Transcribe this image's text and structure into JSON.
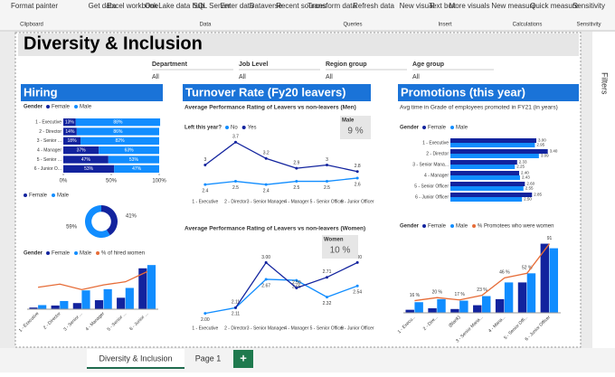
{
  "ribbon": {
    "groups": [
      {
        "name": "Clipboard",
        "items": [
          "Format painter"
        ]
      },
      {
        "name": "Data",
        "items": [
          "Get data",
          "Excel workbook",
          "OneLake data hub",
          "SQL Server",
          "Enter data",
          "Dataverse",
          "Recent sources"
        ]
      },
      {
        "name": "Queries",
        "items": [
          "Transform data",
          "Refresh data"
        ]
      },
      {
        "name": "Insert",
        "items": [
          "New visual",
          "Text box",
          "More visuals"
        ]
      },
      {
        "name": "Calculations",
        "items": [
          "New measure",
          "Quick measure"
        ]
      },
      {
        "name": "Sensitivity",
        "items": [
          "Sensitivity"
        ]
      }
    ]
  },
  "report": {
    "title": "Diversity & Inclusion"
  },
  "filters": [
    {
      "label": "Department",
      "value": "All"
    },
    {
      "label": "Job Level",
      "value": "All"
    },
    {
      "label": "Region group",
      "value": "All"
    },
    {
      "label": "Age group",
      "value": "All"
    }
  ],
  "hiring": {
    "title": "Hiring",
    "bar": {
      "type": "hbar",
      "stacked": true,
      "legend_title": "Gender",
      "categories": [
        "1 - Executive",
        "2 - Director",
        "3 - Senior ...",
        "4 - Manager",
        "5 - Senior ...",
        "6 - Junior O..."
      ],
      "series": [
        {
          "name": "Female",
          "color": "#12239e",
          "values": [
            13,
            14,
            18,
            37,
            47,
            53
          ],
          "value_labels": [
            "13%",
            "14%",
            "18%",
            "37%",
            "47%",
            "53%"
          ]
        },
        {
          "name": "Male",
          "color": "#118dff",
          "values": [
            88,
            86,
            82,
            63,
            53,
            47
          ],
          "value_labels": [
            "88%",
            "86%",
            "82%",
            "63%",
            "53%",
            "47%"
          ]
        }
      ],
      "xlim": [
        0,
        100
      ],
      "xticks": [
        {
          "value": 0,
          "label": "0%"
        },
        {
          "value": 50,
          "label": "50%"
        },
        {
          "value": 100,
          "label": "100%"
        }
      ]
    },
    "donut": {
      "type": "donut",
      "categories": [
        "Female",
        "Male"
      ],
      "colors": [
        "#12239e",
        "#118dff"
      ],
      "values": [
        41,
        59
      ],
      "value_labels": [
        "41%",
        "59%"
      ]
    },
    "combo": {
      "type": "combo",
      "legend_title": "Gender",
      "categories": [
        "1 - Executive",
        "2 - Director",
        "3 - Senior ...",
        "4 - Manager",
        "5 - Senior ...",
        "6 - Junior ..."
      ],
      "series": [
        {
          "name": "Female",
          "color": "#12239e",
          "values": [
            4,
            9,
            15,
            22,
            28,
            100
          ]
        },
        {
          "name": "Male",
          "color": "#118dff",
          "values": [
            10,
            20,
            46,
            49,
            52,
            108
          ]
        },
        {
          "name": "% of hired women",
          "color": "#e66c37",
          "axis": "y2",
          "values": [
            28,
            32,
            25,
            31,
            35,
            48
          ]
        }
      ],
      "ylim": [
        0,
        115
      ],
      "y2lim": [
        0,
        60
      ]
    }
  },
  "turnover": {
    "title": "Turnover Rate (Fy20 leavers)",
    "men": {
      "type": "line",
      "title": "Average Performance Rating of Leavers vs non-leavers (Men)",
      "legend_title": "Left this year?",
      "categories": [
        "1 - Executive",
        "2 - Director",
        "3 - Senior Manager",
        "4 - Manager",
        "5 - Senior Officer",
        "6 - Junior Officer"
      ],
      "series": [
        {
          "name": "No",
          "color": "#118dff",
          "values": [
            2.4,
            2.5,
            2.4,
            2.5,
            2.5,
            2.6
          ]
        },
        {
          "name": "Yes",
          "color": "#12239e",
          "values": [
            3.0,
            3.7,
            3.2,
            2.9,
            3.0,
            2.8
          ]
        }
      ],
      "ylim": [
        2.1,
        3.9
      ],
      "card": {
        "label": "Male",
        "value": "9 %"
      }
    },
    "women": {
      "type": "line",
      "title": "Average Performance Rating of Leavers vs non-leavers (Women)",
      "categories": [
        "1 - Executive",
        "2 - Director",
        "3 - Senior Manager",
        "4 - Manager",
        "5 - Senior Officer",
        "6 - Junior Officer"
      ],
      "series": [
        {
          "name": "No",
          "color": "#118dff",
          "values": [
            2.0,
            2.11,
            2.67,
            2.65,
            2.32,
            2.54
          ],
          "value_labels": [
            "2.00",
            "2.11",
            "2.67",
            "2.65",
            "2.32",
            "2.54"
          ]
        },
        {
          "name": "Yes",
          "color": "#12239e",
          "values": [
            null,
            2.11,
            3.0,
            2.5,
            2.71,
            3.0
          ],
          "value_labels": [
            null,
            "2.11",
            "3.00",
            "2.50",
            "2.71",
            "3.00"
          ]
        }
      ],
      "ylim": [
        1.85,
        3.15
      ],
      "card": {
        "label": "Women",
        "value": "10 %"
      }
    }
  },
  "promotions": {
    "title": "Promotions (this year)",
    "bar": {
      "type": "hbar",
      "stacked": false,
      "title": "Avg time in Grade of employees promoted in FY21 (in years)",
      "legend_title": "Gender",
      "categories": [
        "1 - Executive",
        "2 - Director",
        "3 - Senior Mana...",
        "4 - Manager",
        "5 - Senior Officer",
        "6 - Junior Officer"
      ],
      "series": [
        {
          "name": "Female",
          "color": "#12239e",
          "values": [
            3.0,
            3.4,
            2.33,
            2.4,
            2.6,
            2.85
          ],
          "value_labels": [
            "3.00",
            "3.40",
            "2.33",
            "2.40",
            "2.60",
            "2.85"
          ]
        },
        {
          "name": "Male",
          "color": "#118dff",
          "values": [
            2.95,
            3.09,
            2.25,
            2.43,
            2.55,
            2.5
          ],
          "value_labels": [
            "2.95",
            "3.09",
            "2.25",
            "2.43",
            "2.55",
            "2.50"
          ]
        }
      ],
      "xlim": [
        0,
        3.6
      ]
    },
    "combo": {
      "type": "combo",
      "legend_title": "Gender",
      "categories": [
        "1 - Execu...",
        "2 - Dire...",
        "(Blank)",
        "3 - Senior Mana...",
        "4 - Mana...",
        "5 - Senior Offi...",
        "6 - Junior Officer"
      ],
      "series": [
        {
          "name": "Female",
          "color": "#12239e",
          "values": [
            4,
            6,
            5,
            10,
            18,
            40,
            91
          ]
        },
        {
          "name": "Male",
          "color": "#118dff",
          "values": [
            14,
            18,
            16,
            22,
            40,
            52,
            85
          ]
        },
        {
          "name": "% Promotees who were women",
          "color": "#e66c37",
          "axis": "y2",
          "values": [
            16,
            20,
            17,
            23,
            46,
            52,
            91
          ],
          "value_labels": [
            "16 %",
            "20 %",
            "17 %",
            "23 %",
            "46 %",
            "52 %",
            "91"
          ]
        }
      ],
      "ylim": [
        0,
        100
      ],
      "y2lim": [
        0,
        100
      ]
    }
  },
  "tabs": {
    "pages": [
      "Diversity & Inclusion",
      "Page 1"
    ],
    "add": "+"
  },
  "pane": {
    "filters": "Filters"
  }
}
